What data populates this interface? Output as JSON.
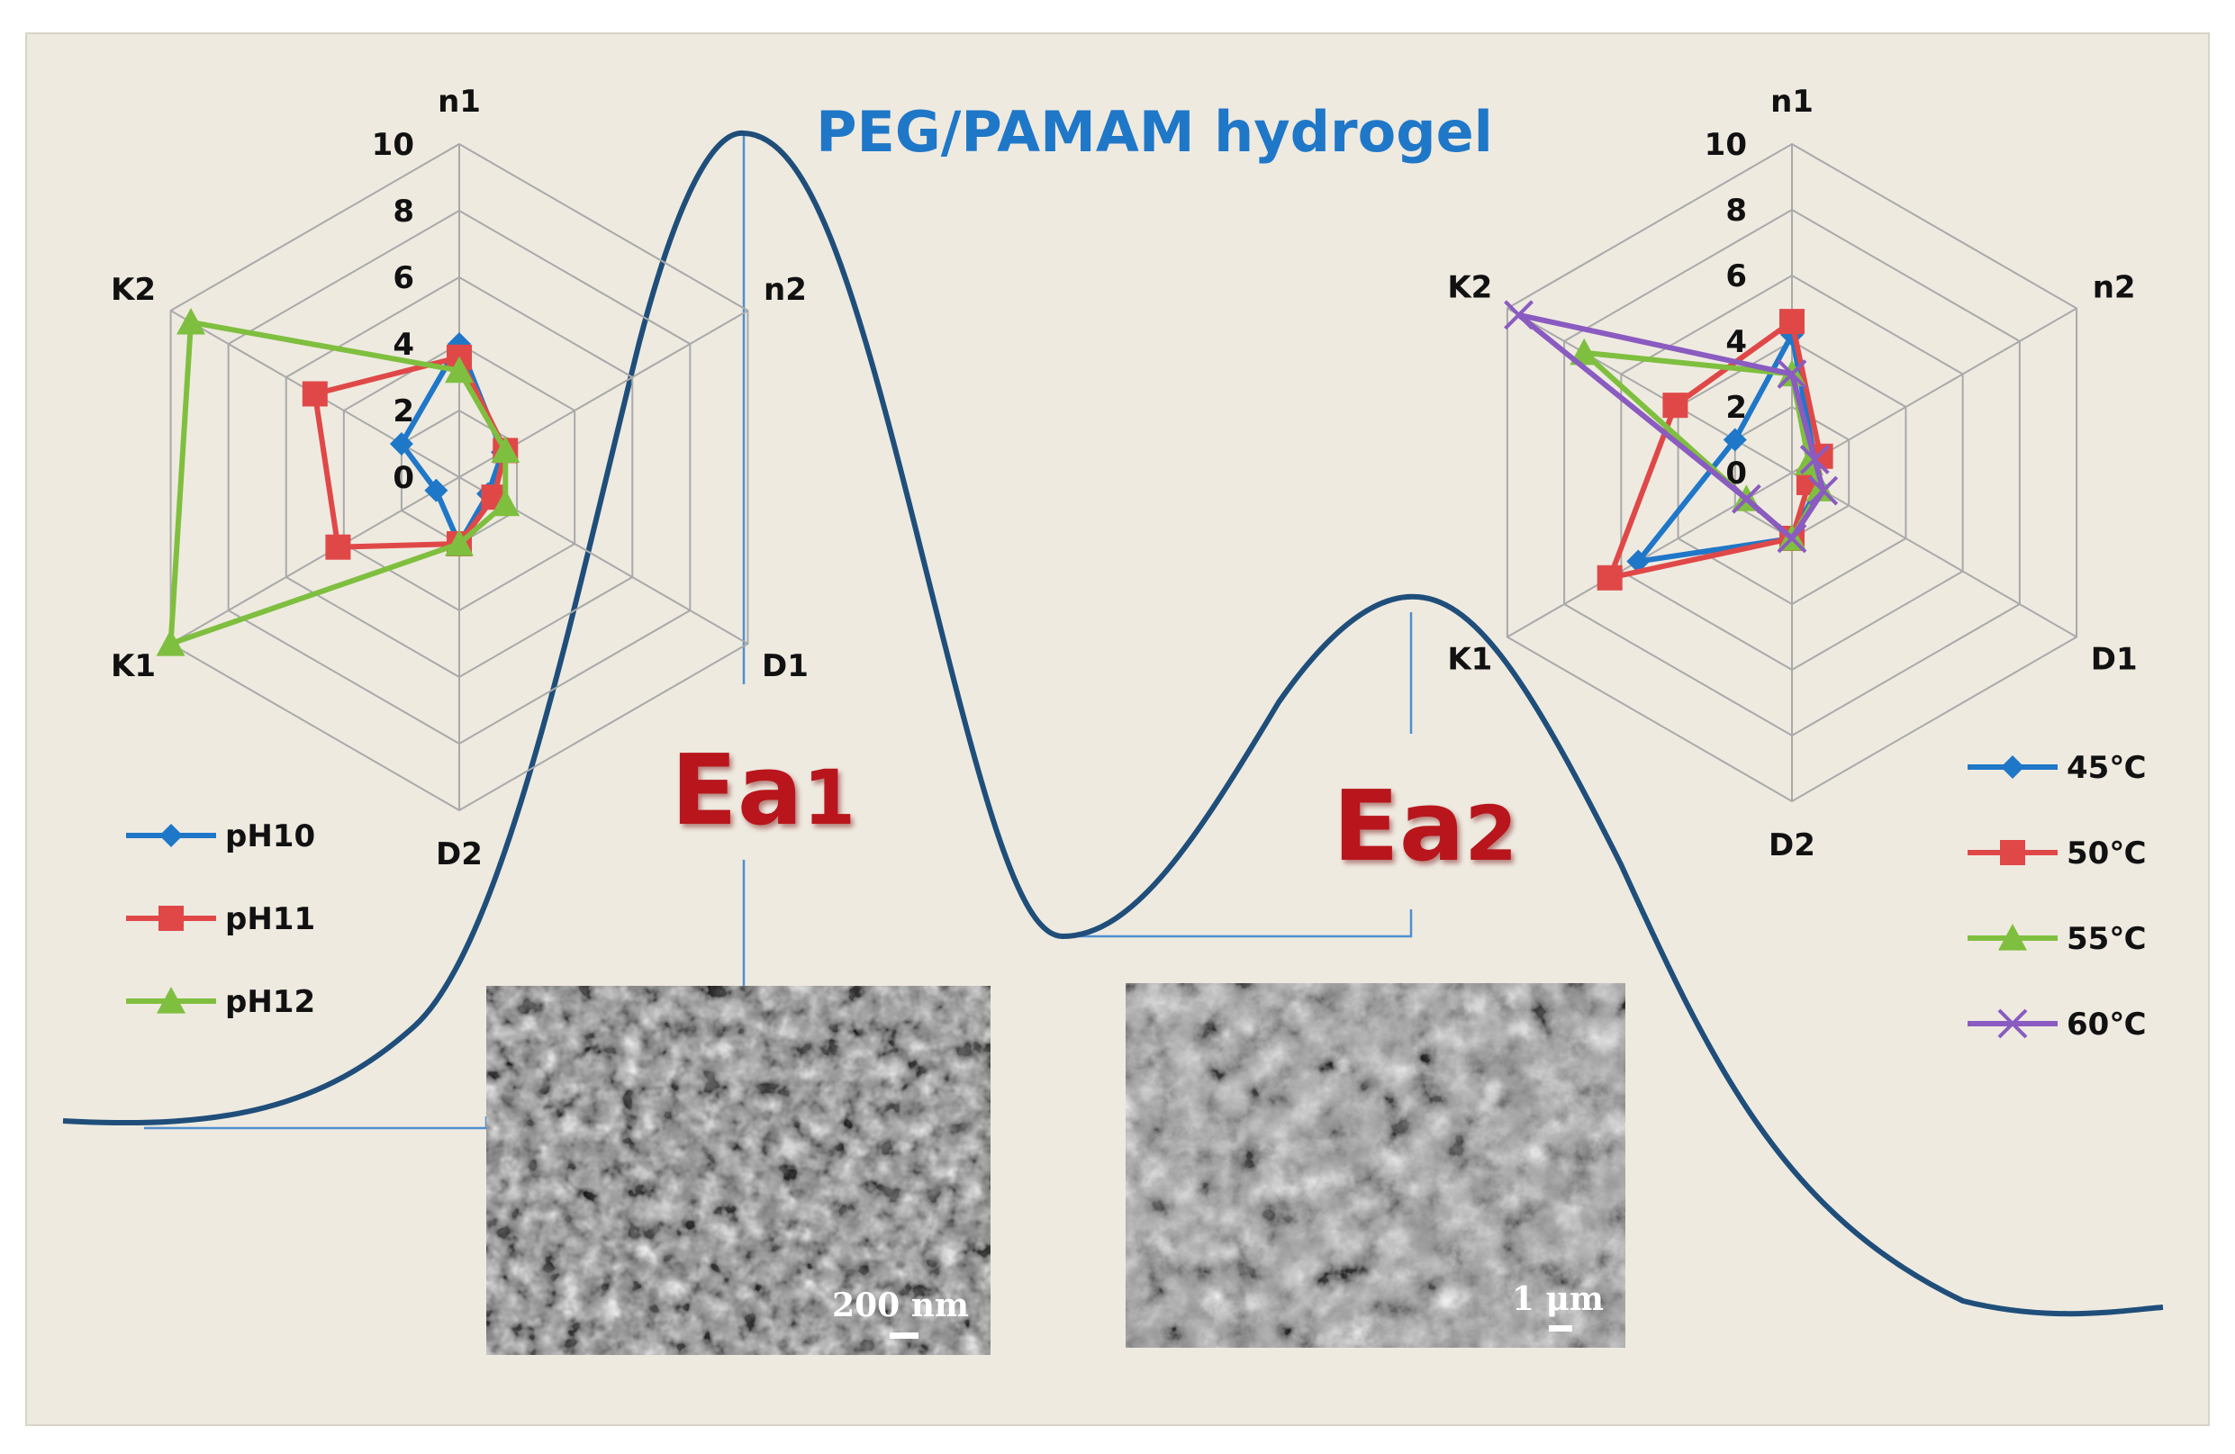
{
  "title": "PEG/PAMAM hydrogel",
  "colors": {
    "curve": "#1f4e7a",
    "guide": "#4f8fd0",
    "title": "#1f77c8",
    "ea": "#b8121a",
    "grid": "#a9a9a9",
    "panel_bg": "#eeeae0",
    "blue": "#1f77c8",
    "red": "#e04848",
    "green": "#7fbf3f",
    "purple": "#8a5bc0"
  },
  "energy_labels": {
    "ea1": {
      "main": "Ea",
      "sub": "1"
    },
    "ea2": {
      "main": "Ea",
      "sub": "2"
    }
  },
  "sem_images": [
    {
      "scale_label": "200 nm"
    },
    {
      "scale_label": "1 μm"
    }
  ],
  "chart_data": [
    {
      "type": "radar",
      "axes": [
        "n1",
        "n2",
        "D1",
        "D2",
        "K1",
        "K2"
      ],
      "ticks": [
        "0",
        "2",
        "4",
        "6",
        "8",
        "10"
      ],
      "range": [
        0,
        10
      ],
      "legend_position": "bottom-left",
      "series": [
        {
          "name": "pH10",
          "color": "#1f77c8",
          "marker": "diamond",
          "values": [
            4.0,
            1.5,
            1.0,
            2.0,
            0.8,
            2.0
          ]
        },
        {
          "name": "pH11",
          "color": "#e04848",
          "marker": "square",
          "values": [
            3.6,
            1.6,
            1.2,
            2.0,
            4.2,
            5.0
          ]
        },
        {
          "name": "pH12",
          "color": "#7fbf3f",
          "marker": "triangle",
          "values": [
            3.2,
            1.6,
            1.6,
            2.0,
            10.0,
            9.3
          ]
        }
      ]
    },
    {
      "type": "radar",
      "axes": [
        "n1",
        "n2",
        "D1",
        "D2",
        "K1",
        "K2"
      ],
      "ticks": [
        "0",
        "2",
        "4",
        "6",
        "8",
        "10"
      ],
      "range": [
        0,
        10
      ],
      "legend_position": "bottom-right",
      "series": [
        {
          "name": "45℃",
          "color": "#1f77c8",
          "marker": "diamond",
          "values": [
            4.2,
            0.8,
            0.9,
            2.0,
            5.4,
            2.0
          ]
        },
        {
          "name": "50℃",
          "color": "#e04848",
          "marker": "square",
          "values": [
            4.6,
            1.0,
            0.6,
            2.0,
            6.4,
            4.1
          ]
        },
        {
          "name": "55℃",
          "color": "#7fbf3f",
          "marker": "triangle",
          "values": [
            3.0,
            0.6,
            1.0,
            2.0,
            1.6,
            7.3
          ]
        },
        {
          "name": "60℃",
          "color": "#8a5bc0",
          "marker": "x",
          "values": [
            3.0,
            0.8,
            1.1,
            2.0,
            1.6,
            9.6
          ]
        }
      ]
    }
  ]
}
